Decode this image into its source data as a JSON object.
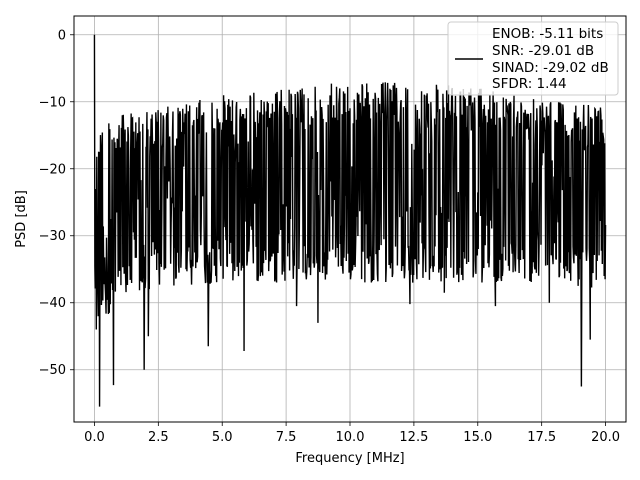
{
  "chart_data": {
    "type": "line",
    "title": "",
    "xlabel": "Frequency [MHz]",
    "ylabel": "PSD [dB]",
    "xlim": [
      -0.8,
      20.8
    ],
    "ylim": [
      -57.8,
      2.8
    ],
    "grid": true,
    "legend_position": "top-right",
    "x_ticks": [
      0.0,
      2.5,
      5.0,
      7.5,
      10.0,
      12.5,
      15.0,
      17.5,
      20.0
    ],
    "x_tick_labels": [
      "0.0",
      "2.5",
      "5.0",
      "7.5",
      "10.0",
      "12.5",
      "15.0",
      "17.5",
      "20.0"
    ],
    "y_ticks": [
      0,
      -10,
      -20,
      -30,
      -40,
      -50
    ],
    "y_tick_labels": [
      "0",
      "−10",
      "−20",
      "−30",
      "−40",
      "−50"
    ],
    "legend": [
      "ENOB: -5.11 bits",
      "SNR: -29.01 dB",
      "SINAD: -29.02 dB",
      "SFDR: 1.44"
    ],
    "series": [
      {
        "color": "#000000",
        "x_range": [
          0,
          20
        ],
        "dc_peak": {
          "x": 0.0,
          "y": 0.0
        },
        "envelope": [
          {
            "x": 0.0,
            "upper": -13,
            "lower": -44
          },
          {
            "x": 1.0,
            "upper": -12,
            "lower": -40
          },
          {
            "x": 2.5,
            "upper": -11,
            "lower": -38
          },
          {
            "x": 5.0,
            "upper": -9,
            "lower": -37
          },
          {
            "x": 7.5,
            "upper": -8,
            "lower": -37
          },
          {
            "x": 10.0,
            "upper": -7,
            "lower": -37
          },
          {
            "x": 12.5,
            "upper": -7,
            "lower": -37
          },
          {
            "x": 15.0,
            "upper": -8,
            "lower": -37
          },
          {
            "x": 17.5,
            "upper": -9,
            "lower": -37
          },
          {
            "x": 20.0,
            "upper": -11,
            "lower": -38
          }
        ],
        "notable_minima": [
          {
            "x": 0.2,
            "y": -55.5
          },
          {
            "x": 0.08,
            "y": -44
          },
          {
            "x": 0.75,
            "y": -52.3
          },
          {
            "x": 1.95,
            "y": -50
          },
          {
            "x": 2.1,
            "y": -45
          },
          {
            "x": 4.45,
            "y": -46.5
          },
          {
            "x": 5.85,
            "y": -47.2
          },
          {
            "x": 7.9,
            "y": -40.5
          },
          {
            "x": 8.75,
            "y": -43
          },
          {
            "x": 12.35,
            "y": -40.2
          },
          {
            "x": 13.7,
            "y": -38.5
          },
          {
            "x": 15.7,
            "y": -40.5
          },
          {
            "x": 17.8,
            "y": -40
          },
          {
            "x": 19.05,
            "y": -52.5
          },
          {
            "x": 19.4,
            "y": -45.5
          }
        ]
      }
    ]
  }
}
